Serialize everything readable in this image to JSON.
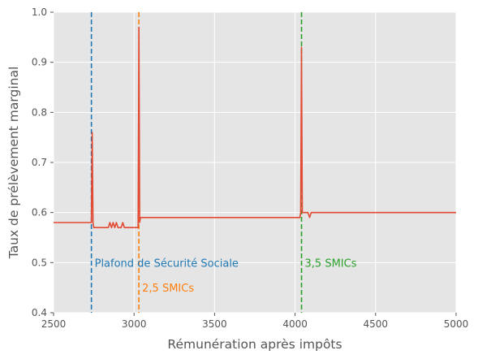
{
  "chart_data": {
    "type": "line",
    "title": "",
    "xlabel": "Rémunération après impôts",
    "ylabel": "Taux de prélèvement marginal",
    "xlim": [
      2500,
      5000
    ],
    "ylim": [
      0.4,
      1.0
    ],
    "x_ticks": [
      2500,
      3000,
      3500,
      4000,
      4500,
      5000
    ],
    "y_ticks": [
      0.4,
      0.5,
      0.6,
      0.7,
      0.8,
      0.9,
      1.0
    ],
    "x_tick_labels": [
      "2500",
      "3000",
      "3500",
      "4000",
      "4500",
      "5000"
    ],
    "y_tick_labels": [
      "0.4",
      "0.5",
      "0.6",
      "0.7",
      "0.8",
      "0.9",
      "1.0"
    ],
    "grid": true,
    "background": "#e5e5e5",
    "series": [
      {
        "color": "#e24a33",
        "x": [
          2500,
          2735,
          2740,
          2745,
          2750,
          2800,
          2840,
          2850,
          2860,
          2870,
          2880,
          2890,
          2900,
          2920,
          2930,
          2940,
          3010,
          3025,
          3030,
          3035,
          3040,
          3500,
          4030,
          4035,
          4040,
          4045,
          4050,
          4060,
          4080,
          4090,
          4100,
          4500,
          5000
        ],
        "y": [
          0.58,
          0.58,
          0.76,
          0.58,
          0.57,
          0.57,
          0.57,
          0.58,
          0.57,
          0.58,
          0.57,
          0.58,
          0.57,
          0.57,
          0.58,
          0.57,
          0.57,
          0.57,
          0.97,
          0.58,
          0.59,
          0.59,
          0.59,
          0.6,
          0.93,
          0.6,
          0.6,
          0.6,
          0.6,
          0.59,
          0.6,
          0.6,
          0.6
        ]
      }
    ],
    "reference_lines": [
      {
        "x": 2735,
        "color": "#1f77b4",
        "label": "Plafond de Sécurité Sociale",
        "label_y": 0.5
      },
      {
        "x": 3030,
        "color": "#ff7f0e",
        "label": "2,5 SMICs",
        "label_y": 0.45
      },
      {
        "x": 4040,
        "color": "#2ca02c",
        "label": "3,5 SMICs",
        "label_y": 0.5
      }
    ]
  }
}
